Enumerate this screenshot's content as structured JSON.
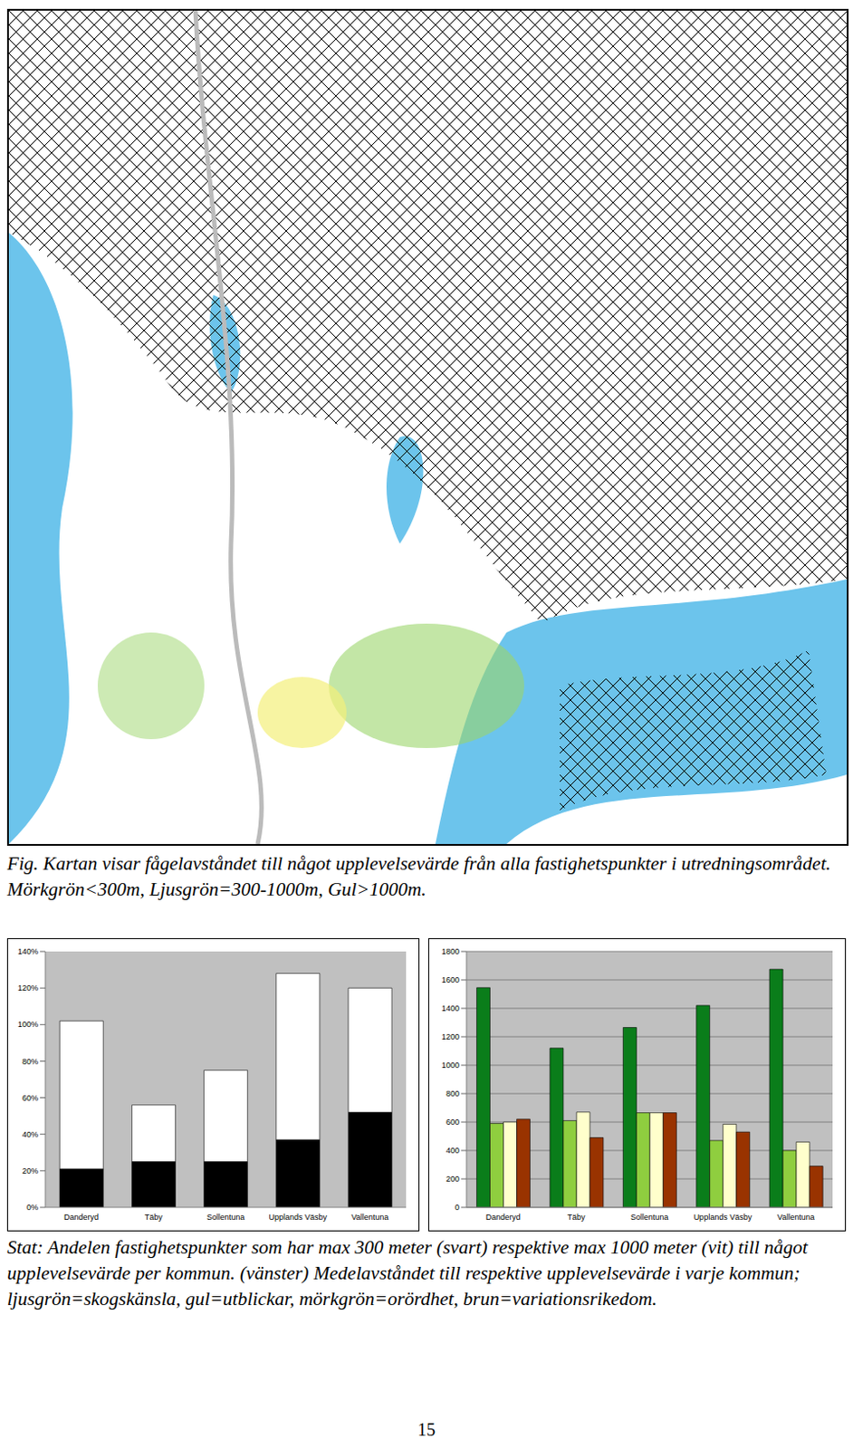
{
  "page": {
    "figure_caption": "Fig. Kartan visar fågelavståndet till något upplevelsevärde från alla fastighetspunkter i utredningsområdet. Mörkgrön<300m, Ljusgrön=300-1000m, Gul>1000m.",
    "stat_caption": "Stat: Andelen fastighetspunkter som har max 300 meter (svart) respektive max 1000 meter (vit) till något upplevelsevärde per kommun. (vänster) Medelavståndet till respektive upplevelsevärde i varje kommun; ljusgrön=skogskänsla, gul=utblickar, mörkgrön=orördhet, brun=variationsrikedom.",
    "page_number": "15"
  },
  "chart_data": [
    {
      "type": "bar",
      "stacked": true,
      "grid": false,
      "categories": [
        "Danderyd",
        "Täby",
        "Sollentuna",
        "Upplands Väsby",
        "Vallentuna"
      ],
      "series": [
        {
          "color": "#000000",
          "values": [
            21,
            25,
            25,
            37,
            52
          ]
        },
        {
          "color": "#ffffff",
          "values": [
            81,
            31,
            50,
            91,
            68
          ]
        }
      ],
      "ylim": [
        0,
        140
      ],
      "yticks": [
        {
          "value": 0,
          "label": "0%"
        },
        {
          "value": 20,
          "label": "20%"
        },
        {
          "value": 40,
          "label": "40%"
        },
        {
          "value": 60,
          "label": "60%"
        },
        {
          "value": 80,
          "label": "80%"
        },
        {
          "value": 100,
          "label": "100%"
        },
        {
          "value": 120,
          "label": "120%"
        },
        {
          "value": 140,
          "label": "140%"
        }
      ]
    },
    {
      "type": "bar",
      "stacked": false,
      "grid": true,
      "categories": [
        "Danderyd",
        "Täby",
        "Sollentuna",
        "Upplands Väsby",
        "Vallentuna"
      ],
      "series": [
        {
          "color": "#0a7d1a",
          "values": [
            1545,
            1120,
            1265,
            1420,
            1675
          ]
        },
        {
          "color": "#8fce3f",
          "values": [
            590,
            610,
            665,
            470,
            400
          ]
        },
        {
          "color": "#ffffcc",
          "values": [
            600,
            670,
            665,
            585,
            460
          ]
        },
        {
          "color": "#993300",
          "values": [
            620,
            490,
            665,
            530,
            290
          ]
        }
      ],
      "ylim": [
        0,
        1800
      ],
      "yticks": [
        0,
        200,
        400,
        600,
        800,
        1000,
        1200,
        1400,
        1600,
        1800
      ]
    }
  ]
}
